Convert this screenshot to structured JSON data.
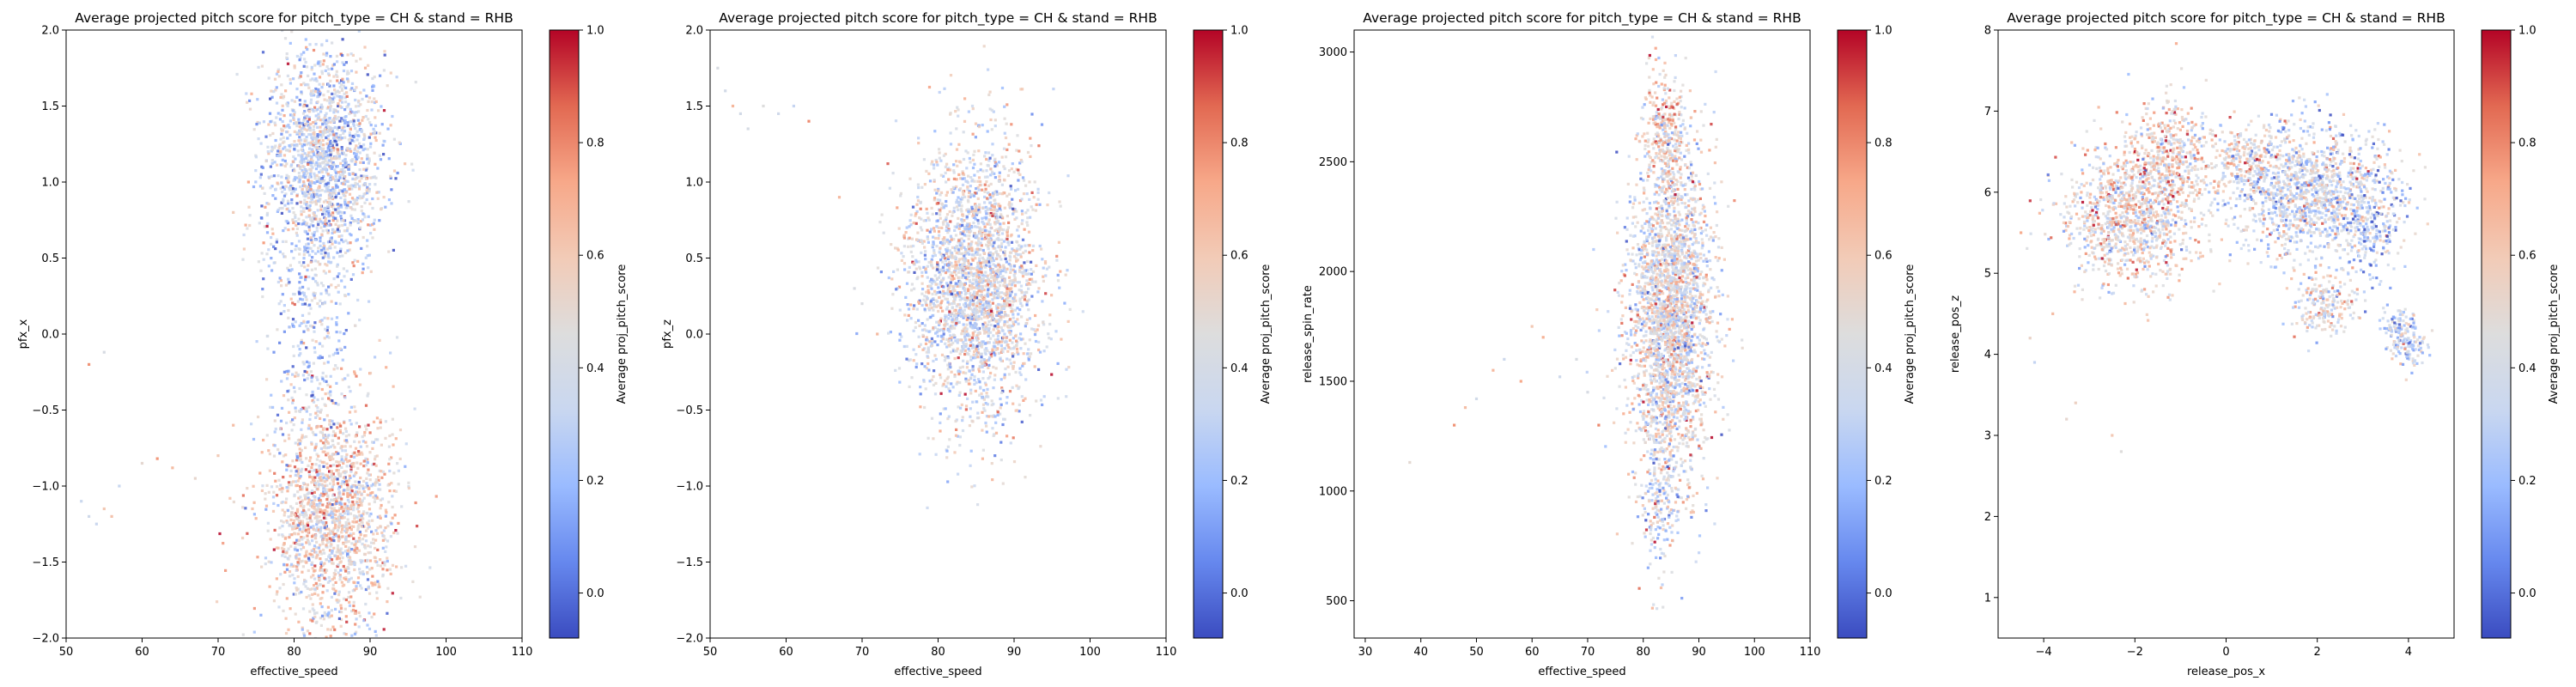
{
  "chart_data": [
    {
      "type": "scatter",
      "title": "Average projected pitch score for pitch_type = CH & stand = RHB",
      "xlabel": "effective_speed",
      "ylabel": "pfx_x",
      "xlim": [
        50,
        110
      ],
      "ylim": [
        -2.0,
        2.0
      ],
      "xticks": [
        50,
        60,
        70,
        80,
        90,
        100,
        110
      ],
      "yticks": [
        -2.0,
        -1.5,
        -1.0,
        -0.5,
        0.0,
        0.5,
        1.0,
        1.5,
        2.0
      ],
      "ytick_decimals": 1,
      "color_metric": "Average proj_pitch_score",
      "clusters": [
        {
          "cx": 84,
          "cy": 1.15,
          "sx": 4.0,
          "sy": 0.38,
          "n": 1700,
          "mean": 0.35
        },
        {
          "cx": 85,
          "cy": -1.2,
          "sx": 4.2,
          "sy": 0.38,
          "n": 1700,
          "mean": 0.52
        },
        {
          "cx": 82,
          "cy": 0.1,
          "sx": 2.5,
          "sy": 0.5,
          "n": 350,
          "mean": 0.3
        }
      ],
      "outliers": [
        [
          52,
          -1.1
        ],
        [
          53,
          -1.2
        ],
        [
          54,
          -1.25
        ],
        [
          55,
          -1.15
        ],
        [
          56,
          -1.2
        ],
        [
          57,
          -1.0
        ],
        [
          60,
          -0.85
        ],
        [
          62,
          -0.82
        ],
        [
          64,
          -0.88
        ],
        [
          67,
          -0.95
        ],
        [
          70,
          -0.8
        ],
        [
          72,
          -0.6
        ],
        [
          53,
          -0.2
        ],
        [
          55,
          -0.12
        ],
        [
          72,
          0.8
        ],
        [
          74,
          1.0
        ],
        [
          76,
          0.6
        ]
      ]
    },
    {
      "type": "scatter",
      "title": "Average projected pitch score for pitch_type = CH & stand = RHB",
      "xlabel": "effective_speed",
      "ylabel": "pfx_z",
      "xlim": [
        50,
        110
      ],
      "ylim": [
        -2.0,
        2.0
      ],
      "xticks": [
        50,
        60,
        70,
        80,
        90,
        100,
        110
      ],
      "yticks": [
        -2.0,
        -1.5,
        -1.0,
        -0.5,
        0.0,
        0.5,
        1.0,
        1.5,
        2.0
      ],
      "ytick_decimals": 1,
      "color_metric": "Average proj_pitch_score",
      "clusters": [
        {
          "cx": 85,
          "cy": 0.35,
          "sx": 4.3,
          "sy": 0.45,
          "n": 2600,
          "mean": 0.42
        }
      ],
      "outliers": [
        [
          51,
          1.75
        ],
        [
          52,
          1.6
        ],
        [
          53,
          1.5
        ],
        [
          54,
          1.45
        ],
        [
          55,
          1.35
        ],
        [
          57,
          1.5
        ],
        [
          59,
          1.45
        ],
        [
          61,
          1.5
        ],
        [
          63,
          1.4
        ],
        [
          67,
          0.9
        ],
        [
          69,
          0.3
        ],
        [
          70,
          0.2
        ],
        [
          72,
          0.0
        ]
      ]
    },
    {
      "type": "scatter",
      "title": "Average projected pitch score for pitch_type = CH & stand = RHB",
      "xlabel": "effective_speed",
      "ylabel": "release_spin_rate",
      "xlim": [
        28,
        110
      ],
      "ylim": [
        330,
        3100
      ],
      "xticks": [
        30,
        40,
        50,
        60,
        70,
        80,
        90,
        100,
        110
      ],
      "yticks": [
        500,
        1000,
        1500,
        2000,
        2500,
        3000
      ],
      "ytick_decimals": 0,
      "color_metric": "Average proj_pitch_score",
      "clusters": [
        {
          "cx": 85,
          "cy": 1800,
          "sx": 3.8,
          "sy": 360,
          "n": 2600,
          "mean": 0.45
        },
        {
          "cx": 84,
          "cy": 2650,
          "sx": 2.0,
          "sy": 150,
          "n": 300,
          "mean": 0.55
        },
        {
          "cx": 83,
          "cy": 1000,
          "sx": 1.6,
          "sy": 180,
          "n": 200,
          "mean": 0.35
        }
      ],
      "outliers": [
        [
          38,
          1130
        ],
        [
          46,
          1300
        ],
        [
          48,
          1380
        ],
        [
          50,
          1420
        ],
        [
          53,
          1550
        ],
        [
          55,
          1600
        ],
        [
          58,
          1500
        ],
        [
          60,
          1750
        ],
        [
          62,
          1700
        ],
        [
          65,
          1520
        ],
        [
          68,
          1600
        ],
        [
          70,
          1450
        ],
        [
          72,
          1300
        ]
      ]
    },
    {
      "type": "scatter",
      "title": "Average projected pitch score for pitch_type = CH & stand = RHB",
      "xlabel": "release_pos_x",
      "ylabel": "release_pos_z",
      "xlim": [
        -5.0,
        5.0
      ],
      "ylim": [
        0.5,
        8.0
      ],
      "xticks": [
        -4,
        -2,
        0,
        2,
        4
      ],
      "yticks": [
        1,
        2,
        3,
        4,
        5,
        6,
        7,
        8
      ],
      "ytick_decimals": 0,
      "color_metric": "Average proj_pitch_score",
      "clusters": [
        {
          "cx": -2.1,
          "cy": 5.7,
          "sx": 0.75,
          "sy": 0.42,
          "n": 1100,
          "mean": 0.5
        },
        {
          "cx": -1.2,
          "cy": 6.5,
          "sx": 0.45,
          "sy": 0.35,
          "n": 400,
          "mean": 0.55
        },
        {
          "cx": 1.8,
          "cy": 6.0,
          "sx": 0.9,
          "sy": 0.4,
          "n": 1300,
          "mean": 0.38
        },
        {
          "cx": 0.4,
          "cy": 6.4,
          "sx": 0.4,
          "sy": 0.2,
          "n": 200,
          "mean": 0.5
        },
        {
          "cx": 2.2,
          "cy": 4.6,
          "sx": 0.35,
          "sy": 0.18,
          "n": 200,
          "mean": 0.45
        },
        {
          "cx": 3.8,
          "cy": 4.3,
          "sx": 0.2,
          "sy": 0.15,
          "n": 90,
          "mean": 0.3
        },
        {
          "cx": 4.1,
          "cy": 4.1,
          "sx": 0.18,
          "sy": 0.15,
          "n": 80,
          "mean": 0.35
        },
        {
          "cx": 3.2,
          "cy": 5.6,
          "sx": 0.35,
          "sy": 0.4,
          "n": 200,
          "mean": 0.25
        }
      ],
      "outliers": [
        [
          -4.3,
          4.2
        ],
        [
          -4.2,
          3.9
        ],
        [
          -3.5,
          3.2
        ],
        [
          -3.3,
          3.4
        ],
        [
          -2.5,
          3.0
        ],
        [
          -2.3,
          2.8
        ],
        [
          -3.8,
          4.5
        ],
        [
          -4.5,
          5.5
        ]
      ]
    }
  ],
  "colorbar": {
    "label": "Average proj_pitch_score",
    "ticks": [
      "0.0",
      "0.2",
      "0.4",
      "0.6",
      "0.8",
      "1.0"
    ],
    "vmin": -0.08,
    "vmax": 1.0,
    "colormap": [
      "#3b4cc0",
      "#6688ee",
      "#9abbff",
      "#c9d7f0",
      "#dddddd",
      "#f2cbb7",
      "#f7a889",
      "#e26952",
      "#b40426"
    ]
  }
}
